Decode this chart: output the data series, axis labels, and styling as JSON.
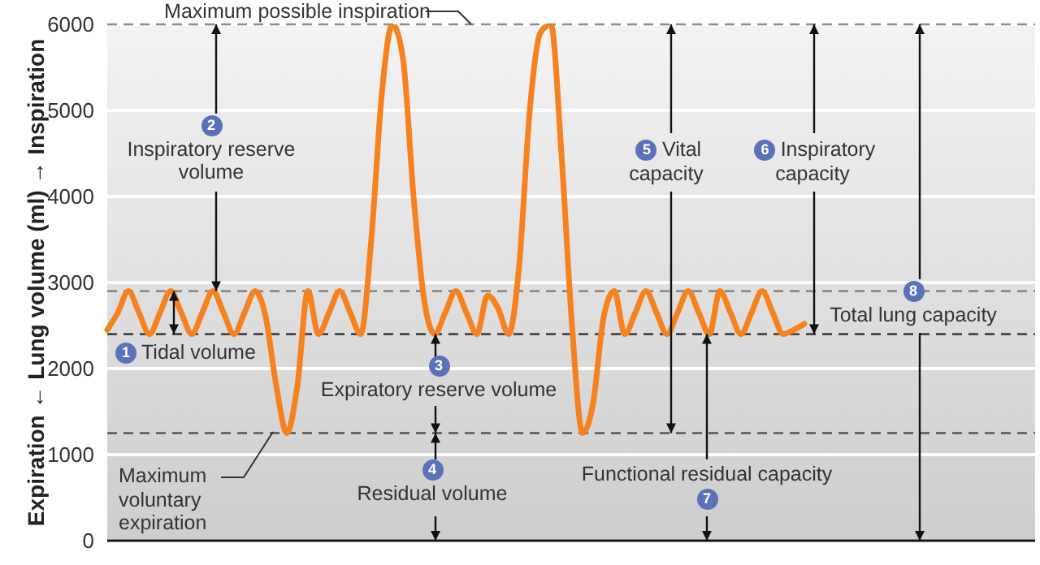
{
  "chart_data": {
    "type": "line",
    "ylabel": "Expiration ← Lung volume (ml) → Inspiration",
    "categories": [
      null,
      null,
      null,
      null,
      null,
      null,
      null,
      null,
      null,
      null,
      null,
      null,
      null,
      null,
      null,
      null,
      null,
      null,
      null,
      null,
      null,
      null,
      null,
      null,
      null,
      null,
      null,
      null,
      null,
      null,
      null,
      null,
      null,
      null,
      null,
      null,
      null,
      null,
      null,
      null,
      null,
      null,
      null,
      null,
      null,
      null,
      null,
      null,
      null,
      null,
      null,
      null,
      null,
      null,
      null,
      null,
      null,
      null,
      null,
      null,
      null,
      null,
      null,
      null,
      null,
      null,
      null
    ],
    "series": [
      {
        "color": "#f5821f",
        "values": [
          2450,
          2650,
          2900,
          2650,
          2400,
          2650,
          2900,
          2650,
          2400,
          2650,
          2900,
          2650,
          2400,
          2650,
          2900,
          2600,
          1800,
          1250,
          1800,
          2900,
          2400,
          2650,
          2900,
          2650,
          2400,
          3500,
          5200,
          6000,
          5600,
          4000,
          2800,
          2400,
          2650,
          2900,
          2650,
          2400,
          2850,
          2700,
          2400,
          3200,
          5000,
          5900,
          6000,
          4500,
          2500,
          1250,
          1600,
          2600,
          2900,
          2400,
          2650,
          2900,
          2650,
          2400,
          2650,
          2900,
          2650,
          2400,
          2900,
          2650,
          2400,
          2650,
          2900,
          2650,
          2400,
          2450,
          2520
        ]
      }
    ],
    "ylim": [
      0,
      6000
    ],
    "yticks": [
      0,
      1000,
      2000,
      3000,
      4000,
      5000,
      6000
    ],
    "grid": "y",
    "tick_labels": "y",
    "line_style": "solid",
    "ref_lines": [
      {
        "axis": "y",
        "value": 6000,
        "label": "Maximum possible inspiration",
        "color": "#8a8a8a",
        "line_style": "dashed"
      },
      {
        "axis": "y",
        "value": 2900,
        "label": null,
        "color": "#8a8a8a",
        "line_style": "dashed"
      },
      {
        "axis": "y",
        "value": 2400,
        "label": null,
        "color": "#444444",
        "line_style": "dashed"
      },
      {
        "axis": "y",
        "value": 1250,
        "label": "Maximum voluntary expiration",
        "color": "#555555",
        "line_style": "dashed"
      }
    ],
    "annotations": [
      "1",
      "Tidal volume",
      "2",
      "Inspiratory reserve volume",
      "3",
      "Expiratory reserve volume",
      "4",
      "Residual volume",
      "5",
      "Vital capacity",
      "6",
      "Inspiratory capacity",
      "7",
      "Functional residual capacity",
      "8",
      "Total lung capacity"
    ]
  }
}
